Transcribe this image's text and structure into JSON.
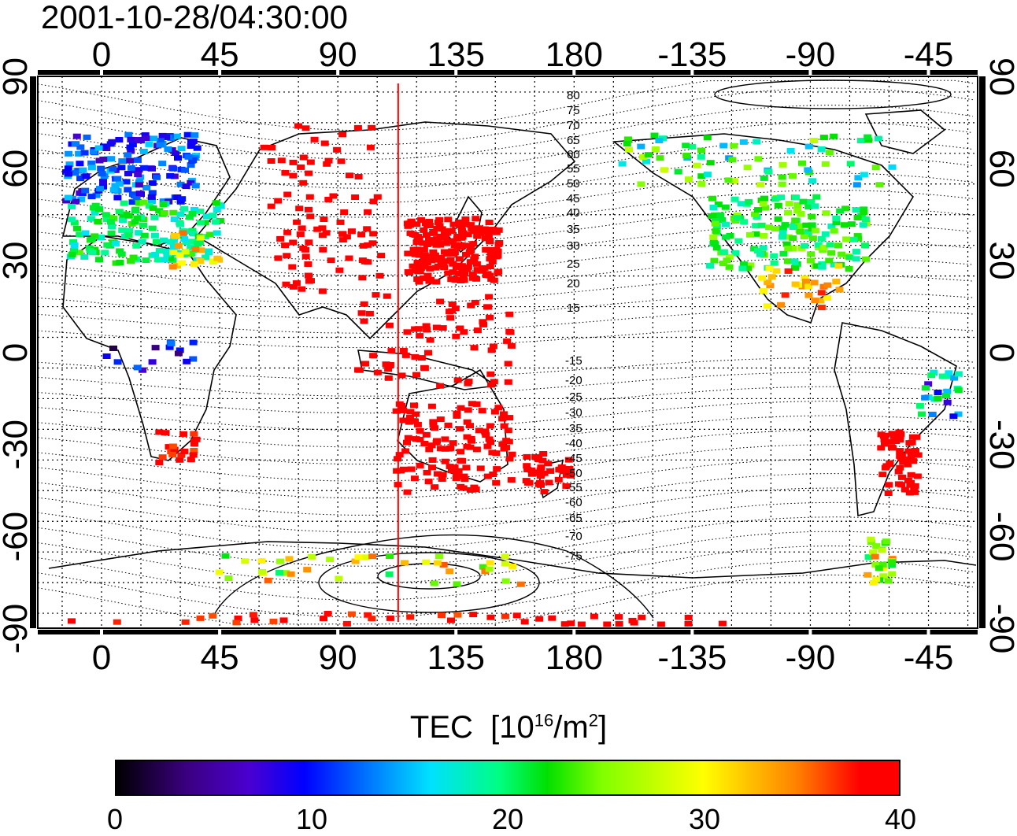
{
  "title": "2001-10-28/04:30:00",
  "map": {
    "lon_ticks": [
      "0",
      "45",
      "90",
      "135",
      "180",
      "-135",
      "-90",
      "-45"
    ],
    "lat_ticks": [
      "90",
      "60",
      "30",
      "0",
      "-30",
      "-60",
      "-90"
    ],
    "marker_longitude": 113,
    "contour_labels_north": [
      "80",
      "75",
      "70",
      "65",
      "60",
      "55",
      "50",
      "45",
      "40",
      "35",
      "30",
      "25",
      "20",
      "15"
    ],
    "contour_labels_south": [
      "-15",
      "-20",
      "-25",
      "-30",
      "-35",
      "-40",
      "-45",
      "-50",
      "-55",
      "-60",
      "-65",
      "-70",
      "-75"
    ],
    "colors": {
      "marker": "#ff0000",
      "frame": "#000000",
      "grid": "#000000"
    }
  },
  "colorbar": {
    "label": "TEC",
    "unit_base": "[10",
    "unit_exp": "16",
    "unit_mid": "/m",
    "unit_exp2": "2",
    "unit_close": "]",
    "ticks": [
      "0",
      "10",
      "20",
      "30",
      "40"
    ],
    "range": [
      0,
      40
    ]
  }
}
